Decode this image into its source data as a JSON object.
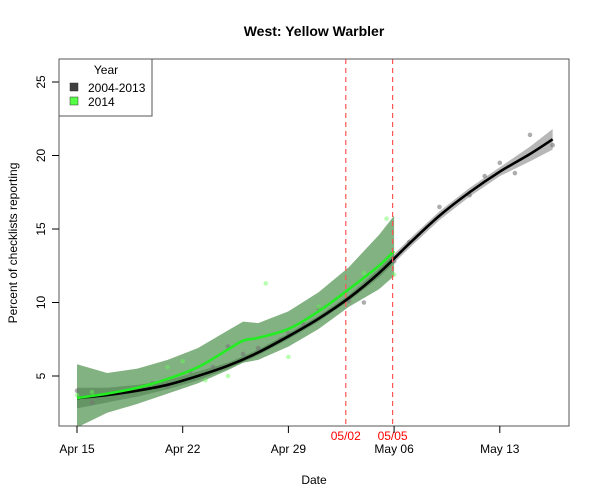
{
  "chart_data": {
    "type": "line",
    "title": "West: Yellow Warbler",
    "xlabel": "Date",
    "ylabel": "Percent of checklists reporting",
    "x_ticks": [
      "Apr 15",
      "Apr 22",
      "Apr 29",
      "May 06",
      "May 13"
    ],
    "x_tick_days": [
      0,
      7,
      14,
      21,
      28
    ],
    "y_ticks": [
      5,
      10,
      15,
      20,
      25
    ],
    "xlim_days": [
      -1.2,
      32.5
    ],
    "ylim": [
      1.5,
      26.5
    ],
    "grid": false,
    "legend": {
      "title": "Year",
      "position": "topleft",
      "entries": [
        {
          "label": "2004-2013",
          "color": "#404040"
        },
        {
          "label": "2014",
          "color": "#55ff44"
        }
      ]
    },
    "vertical_lines": [
      {
        "label": "05/02",
        "day": 17.8,
        "color": "#ff5555"
      },
      {
        "label": "05/05",
        "day": 20.9,
        "color": "#ff5555"
      }
    ],
    "series": [
      {
        "name": "2004-2013",
        "color": "#000000",
        "band_color": "#999999",
        "x_days": [
          0,
          2,
          4,
          6,
          8,
          10,
          12,
          14,
          16,
          18,
          20,
          22,
          24,
          26,
          28,
          30,
          31.5
        ],
        "fit": [
          3.5,
          3.7,
          4.0,
          4.4,
          5.0,
          5.7,
          6.6,
          7.7,
          8.9,
          10.3,
          12.0,
          14.0,
          15.9,
          17.5,
          18.9,
          20.1,
          21.1
        ],
        "band_lower": [
          2.8,
          3.2,
          3.6,
          4.1,
          4.7,
          5.5,
          6.4,
          7.5,
          8.7,
          10.1,
          11.7,
          13.7,
          15.6,
          17.2,
          18.6,
          19.6,
          20.4
        ],
        "band_upper": [
          4.2,
          4.2,
          4.4,
          4.7,
          5.3,
          5.9,
          6.8,
          7.9,
          9.1,
          10.5,
          12.3,
          14.3,
          16.2,
          17.8,
          19.2,
          20.6,
          21.8
        ],
        "points": [
          [
            0,
            4.0
          ],
          [
            1,
            3.2
          ],
          [
            3,
            3.8
          ],
          [
            5,
            4.5
          ],
          [
            6,
            4.3
          ],
          [
            7.5,
            5.3
          ],
          [
            9,
            5.6
          ],
          [
            10,
            7.0
          ],
          [
            11,
            6.5
          ],
          [
            12,
            6.9
          ],
          [
            13.5,
            7.5
          ],
          [
            14,
            7.9
          ],
          [
            15,
            8.5
          ],
          [
            16,
            9.6
          ],
          [
            18,
            10.1
          ],
          [
            19,
            10.0
          ],
          [
            21,
            12.8
          ],
          [
            22,
            14.1
          ],
          [
            24,
            16.5
          ],
          [
            26,
            17.3
          ],
          [
            27,
            18.6
          ],
          [
            28,
            19.5
          ],
          [
            29,
            18.8
          ],
          [
            30,
            21.4
          ],
          [
            31.5,
            20.7
          ]
        ]
      },
      {
        "name": "2014",
        "color": "#22ee22",
        "band_color": "#2e7d2e",
        "x_days": [
          0,
          2,
          4,
          6,
          8,
          10,
          11,
          12,
          14,
          16,
          18,
          20,
          21
        ],
        "fit": [
          3.5,
          3.8,
          4.2,
          4.8,
          5.6,
          6.8,
          7.4,
          7.6,
          8.2,
          9.4,
          10.9,
          12.5,
          13.5
        ],
        "band_lower": [
          1.5,
          2.5,
          3.1,
          3.8,
          4.5,
          5.4,
          5.9,
          6.1,
          7.0,
          8.2,
          9.7,
          10.9,
          11.8
        ],
        "band_upper": [
          5.8,
          5.2,
          5.5,
          6.1,
          6.9,
          8.1,
          8.7,
          8.6,
          9.4,
          10.7,
          12.4,
          14.6,
          15.9
        ],
        "points": [
          [
            0,
            3.7
          ],
          [
            1,
            3.9
          ],
          [
            3,
            3.9
          ],
          [
            5,
            4.2
          ],
          [
            6,
            5.6
          ],
          [
            7,
            6.0
          ],
          [
            8.5,
            4.7
          ],
          [
            10,
            5.0
          ],
          [
            12.5,
            11.3
          ],
          [
            14,
            6.3
          ],
          [
            16,
            9.7
          ],
          [
            19,
            12.0
          ],
          [
            20.5,
            15.7
          ],
          [
            21,
            11.9
          ]
        ]
      }
    ]
  }
}
